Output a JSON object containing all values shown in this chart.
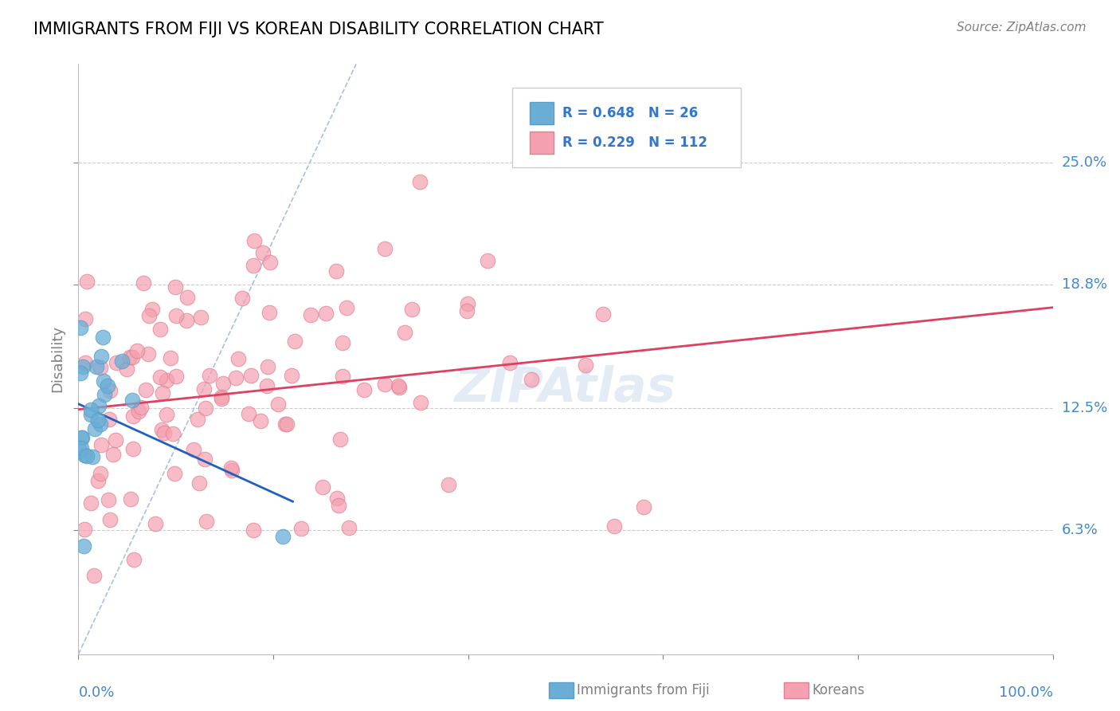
{
  "title": "IMMIGRANTS FROM FIJI VS KOREAN DISABILITY CORRELATION CHART",
  "source": "Source: ZipAtlas.com",
  "ylabel": "Disability",
  "ytick_labels": [
    "6.3%",
    "12.5%",
    "18.8%",
    "25.0%"
  ],
  "ytick_values": [
    0.063,
    0.125,
    0.188,
    0.25
  ],
  "xrange": [
    0.0,
    1.0
  ],
  "yrange": [
    0.0,
    0.3
  ],
  "fiji_R": 0.648,
  "fiji_N": 26,
  "korean_R": 0.229,
  "korean_N": 112,
  "fiji_color": "#6aaed6",
  "fiji_edge": "#5a9ec6",
  "korean_color": "#f4a0b0",
  "korean_edge": "#e08090",
  "fiji_line_color": "#2060c0",
  "korean_line_color": "#e04060",
  "diagonal_color": "#aac0e0",
  "watermark": "ZIPAtlas"
}
